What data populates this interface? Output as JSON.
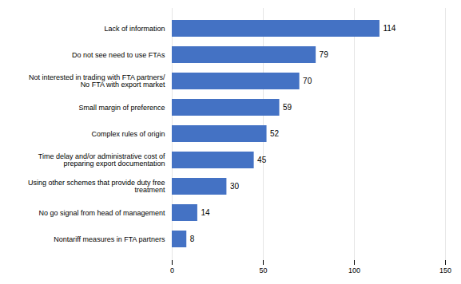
{
  "chart_data": {
    "type": "bar",
    "orientation": "horizontal",
    "categories": [
      "Nontariff measures in FTA partners",
      "No go signal from head of management",
      "Using other schemes that provide duty free\ntreatment",
      "Time delay and/or administrative cost of\npreparing export documentation",
      "Complex rules of origin",
      "Small margin of preference",
      "Not interested in trading with FTA partners/\nNo FTA with export market",
      "Do not see need to use FTAs",
      "Lack of information"
    ],
    "values": [
      8,
      14,
      30,
      45,
      52,
      59,
      70,
      79,
      114
    ],
    "color": "#4472c4",
    "xlim": [
      0,
      150
    ],
    "xticks": [
      0,
      50,
      100,
      150
    ],
    "grid": true,
    "data_labels": true
  }
}
